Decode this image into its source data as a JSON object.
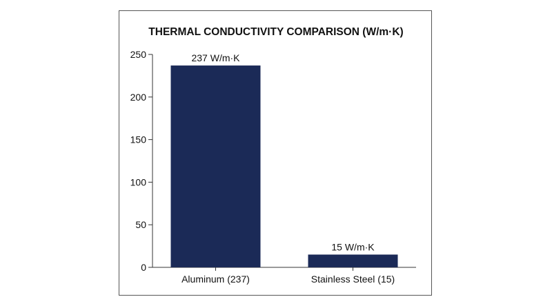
{
  "chart_data": {
    "type": "bar",
    "title": "THERMAL CONDUCTIVITY COMPARISON (W/m·K)",
    "categories": [
      "Aluminum (237)",
      "Stainless Steel (15)"
    ],
    "values": [
      237,
      15
    ],
    "data_labels": [
      "237 W/m·K",
      "15 W/m·K"
    ],
    "ylim": [
      0,
      250
    ],
    "yticks": [
      0,
      50,
      100,
      150,
      200,
      250
    ],
    "xlabel": "",
    "ylabel": "",
    "grid": false,
    "legend": "none",
    "bar_color": "#1b2a57",
    "text_color": "#111111",
    "axis_color": "#333333"
  }
}
